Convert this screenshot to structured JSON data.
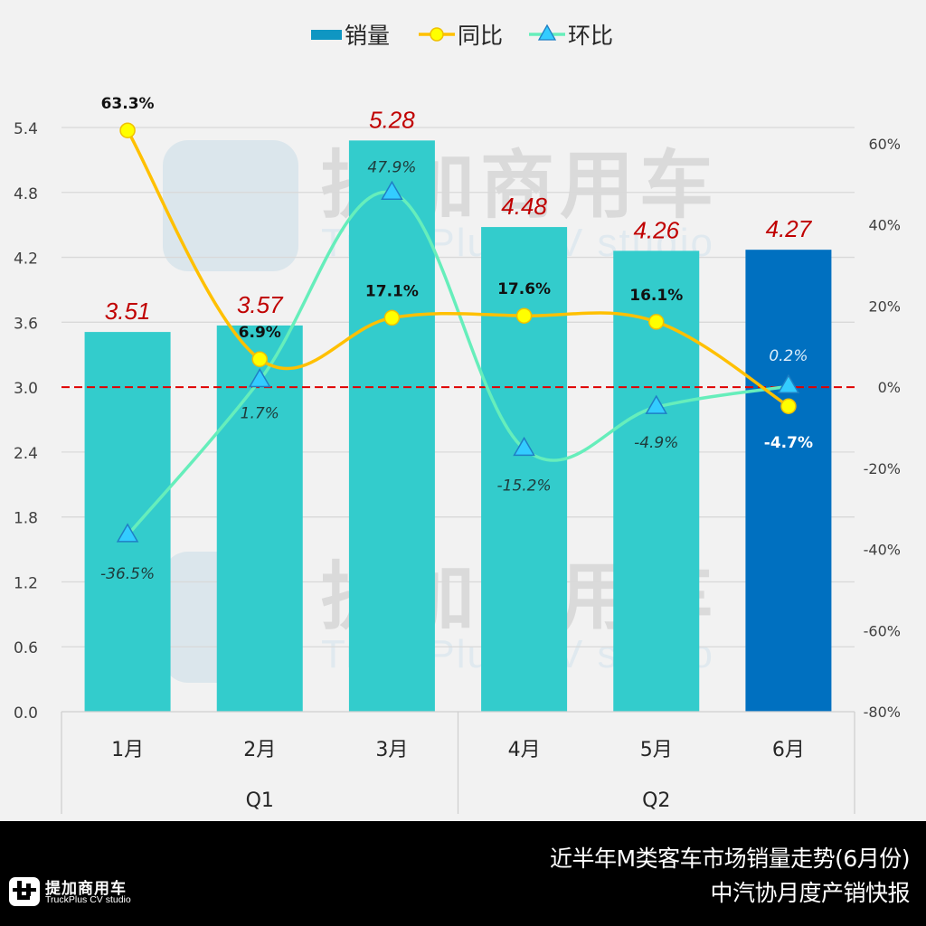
{
  "chart_data": {
    "type": "bar+line",
    "title": "近半年M类客车市场销量走势(6月份)",
    "subtitle": "中汽协月度产销快报",
    "categories": [
      "1月",
      "2月",
      "3月",
      "4月",
      "5月",
      "6月"
    ],
    "groups": [
      {
        "label": "Q1",
        "categories": [
          "1月",
          "2月",
          "3月"
        ]
      },
      {
        "label": "Q2",
        "categories": [
          "4月",
          "5月",
          "6月"
        ]
      }
    ],
    "series": [
      {
        "name": "销量",
        "type": "bar",
        "axis": "left",
        "values": [
          3.51,
          3.57,
          5.28,
          4.48,
          4.26,
          4.27
        ],
        "labels": [
          "3.51",
          "3.57",
          "5.28",
          "4.48",
          "4.26",
          "4.27"
        ],
        "color": "#33cccc",
        "highlight_color": "#0070c0",
        "highlight_index": 5
      },
      {
        "name": "同比",
        "type": "line",
        "axis": "right",
        "values": [
          63.3,
          6.9,
          17.1,
          17.6,
          16.1,
          -4.7
        ],
        "labels": [
          "63.3%",
          "6.9%",
          "17.1%",
          "17.6%",
          "16.1%",
          "-4.7%"
        ],
        "color": "#ffc000",
        "marker": "circle",
        "marker_color": "#ffff00"
      },
      {
        "name": "环比",
        "type": "line",
        "axis": "right",
        "values": [
          -36.5,
          1.7,
          47.9,
          -15.2,
          -4.9,
          0.2
        ],
        "labels": [
          "-36.5%",
          "1.7%",
          "47.9%",
          "-15.2%",
          "-4.9%",
          "0.2%"
        ],
        "color": "#66eebb",
        "marker": "triangle",
        "marker_color": "#33ccff"
      }
    ],
    "left_axis": {
      "ticks": [
        "0.0",
        "0.6",
        "1.2",
        "1.8",
        "2.4",
        "3.0",
        "3.6",
        "4.2",
        "4.8",
        "5.4"
      ],
      "values": [
        0,
        0.6,
        1.2,
        1.8,
        2.4,
        3.0,
        3.6,
        4.2,
        4.8,
        5.4
      ],
      "ylim": [
        0,
        6.0
      ]
    },
    "right_axis": {
      "ticks": [
        "-80%",
        "-60%",
        "-40%",
        "-20%",
        "0%",
        "20%",
        "40%",
        "60%"
      ],
      "values": [
        -80,
        -60,
        -40,
        -20,
        0,
        20,
        40,
        60
      ],
      "ylim": [
        -80,
        80
      ]
    },
    "reference_line": {
      "axis": "right",
      "value": 0,
      "color": "#e00000",
      "style": "dashed"
    },
    "legend": {
      "position": "top-center",
      "entries": [
        "销量",
        "同比",
        "环比"
      ]
    },
    "grid": true,
    "watermark": {
      "cn": "提加商用车",
      "en": "TruckPlus CV studio"
    }
  },
  "footer": {
    "title": "近半年M类客车市场销量走势(6月份)",
    "subtitle": "中汽协月度产销快报",
    "logo_cn": "提加商用车",
    "logo_en": "TruckPlus CV studio"
  }
}
